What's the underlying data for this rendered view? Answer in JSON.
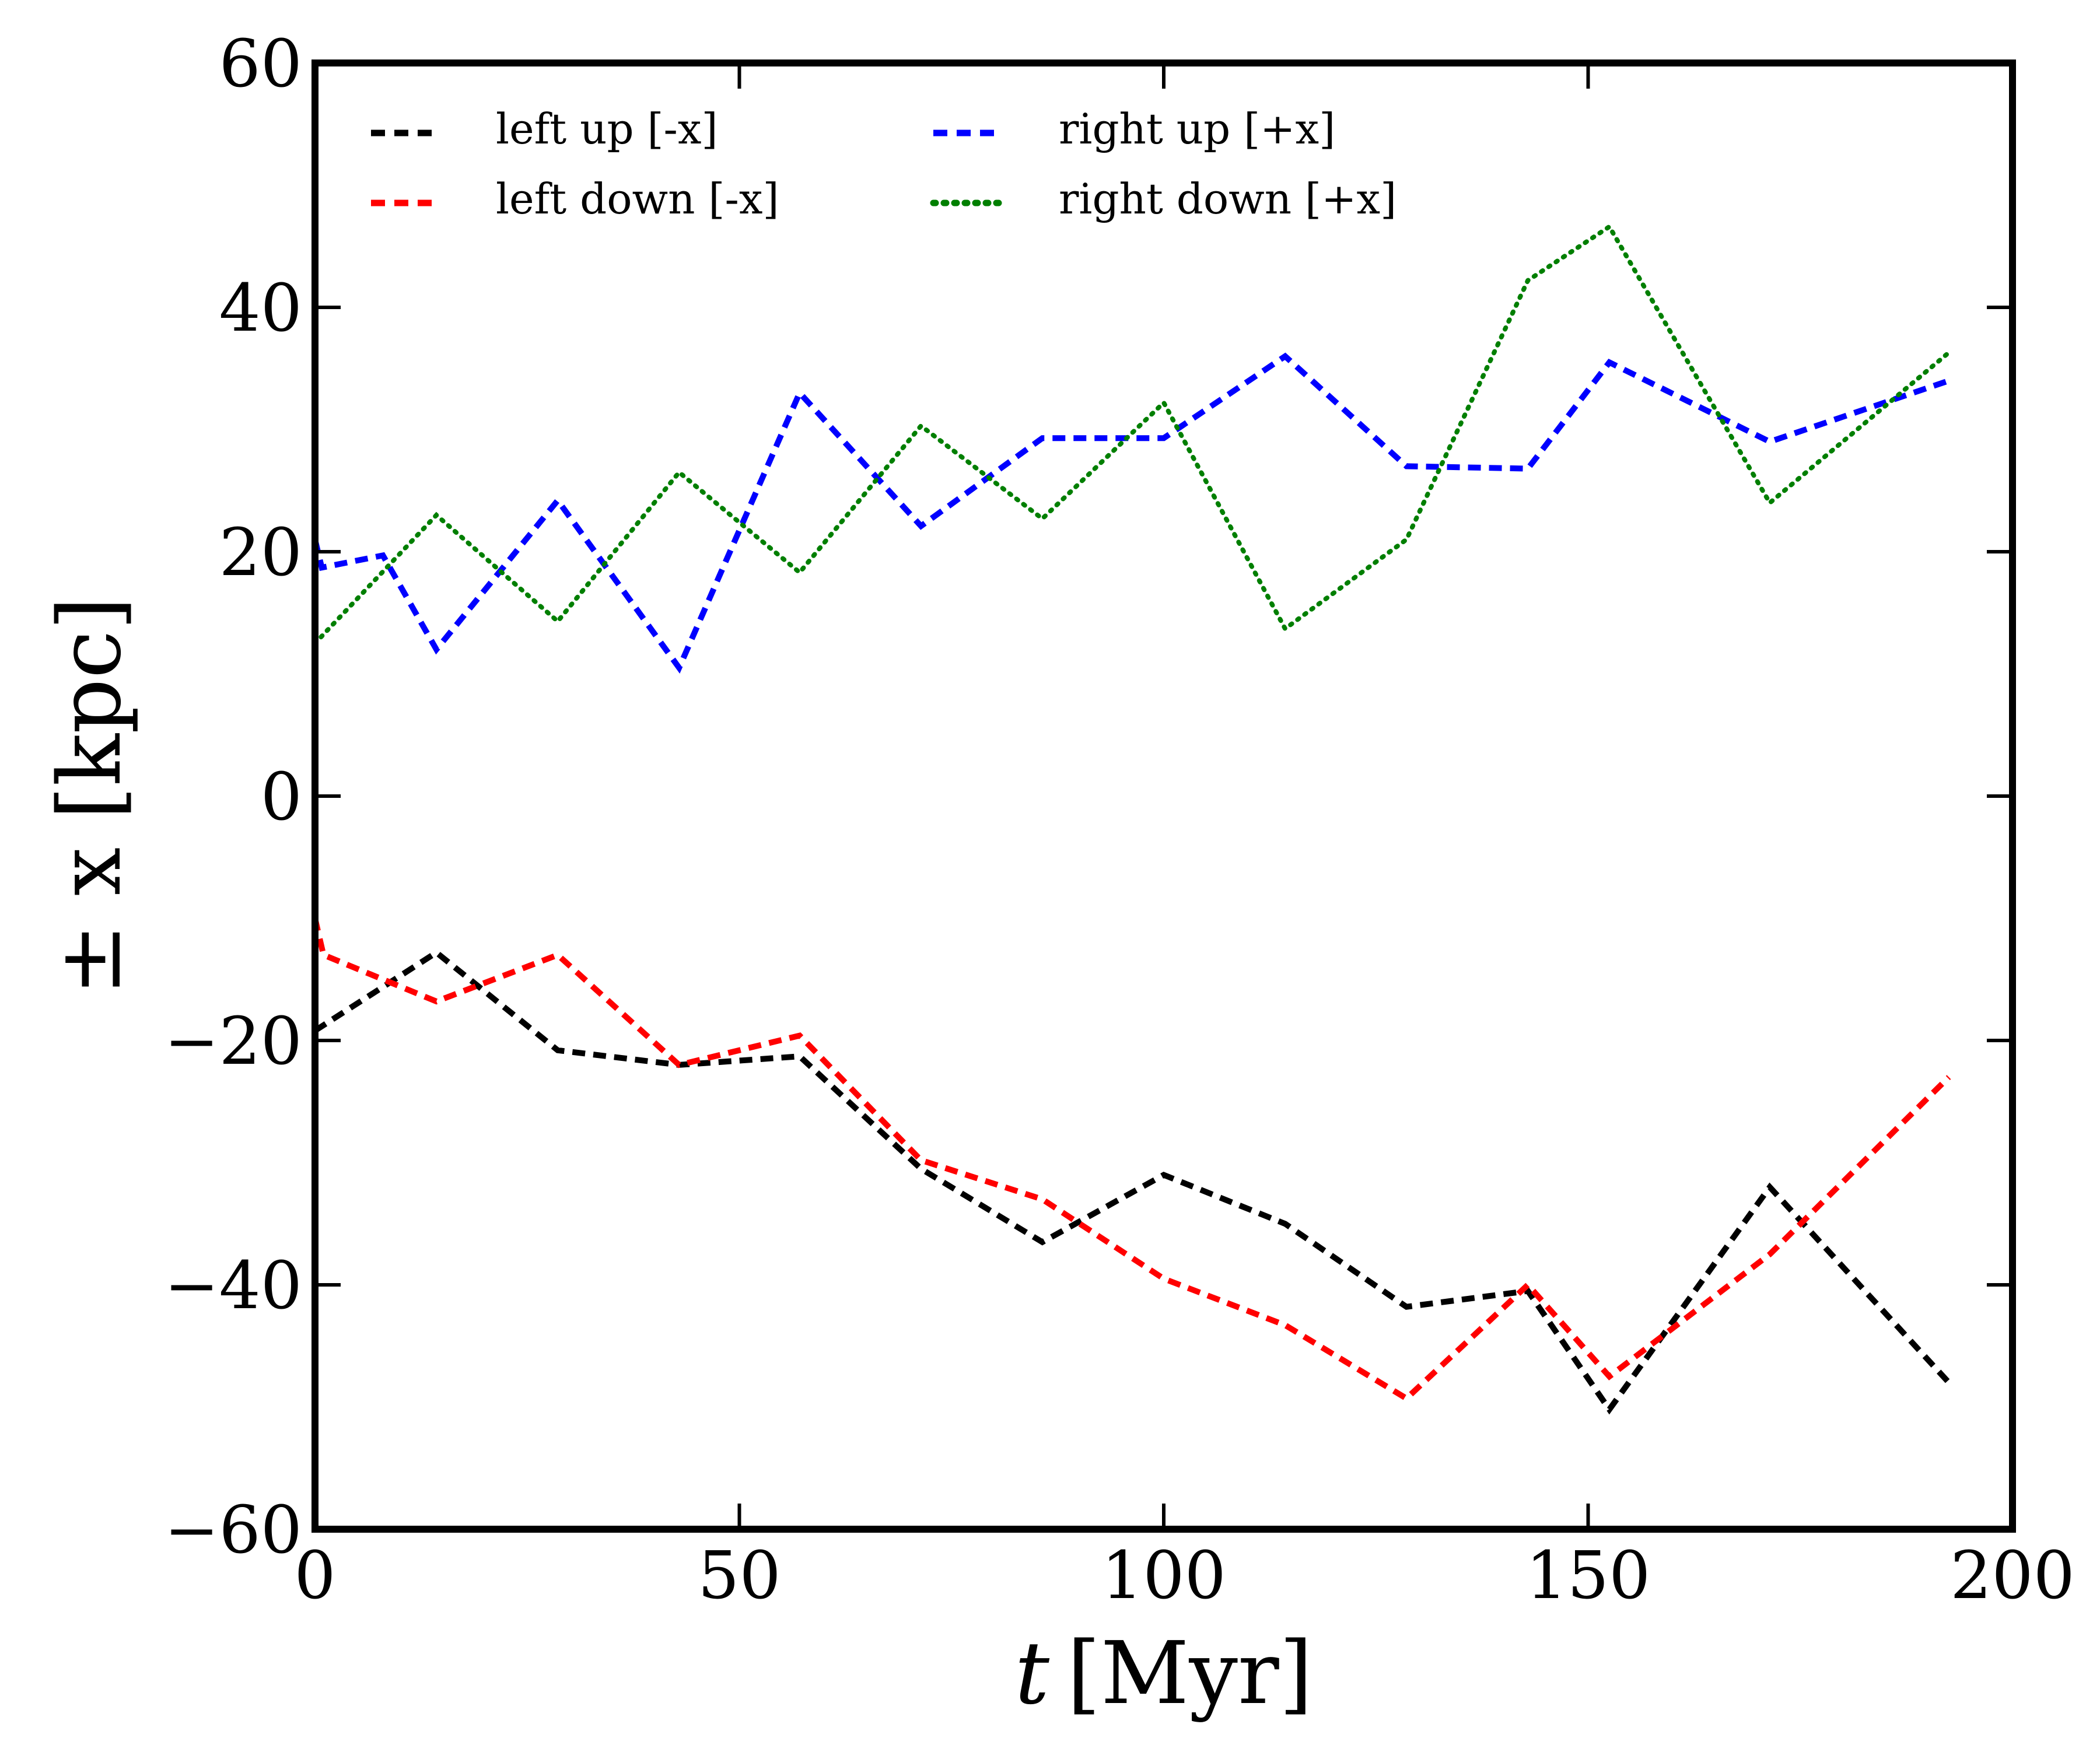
{
  "chart_data": {
    "type": "line",
    "title": "",
    "xlabel": "t [Myr]",
    "xlabel_var": "t",
    "xlabel_unit": "[Myr]",
    "ylabel": "± x [kpc]",
    "xlim": [
      0,
      200
    ],
    "ylim": [
      -60,
      60
    ],
    "xticks": [
      0,
      50,
      100,
      150,
      200
    ],
    "xtick_labels": [
      "0",
      "50",
      "100",
      "150",
      "200"
    ],
    "yticks": [
      -60,
      -40,
      -20,
      0,
      20,
      40,
      60
    ],
    "ytick_labels": [
      "−60",
      "−40",
      "−20",
      "0",
      "20",
      "40",
      "60"
    ],
    "grid": false,
    "legend_position": "top-left",
    "series": [
      {
        "name": "left up [-x]",
        "color": "#000000",
        "style": "dashed",
        "x": [
          0,
          14.3,
          28.6,
          42.9,
          57.1,
          71.4,
          85.7,
          100,
          114.3,
          128.6,
          142.9,
          152.5,
          171.4,
          192.5
        ],
        "y": [
          -19.2,
          -12.8,
          -20.8,
          -22,
          -21.3,
          -30.5,
          -36.5,
          -31,
          -35,
          -41.8,
          -40.5,
          -50.2,
          -32,
          -48
        ]
      },
      {
        "name": "left down [-x]",
        "color": "#ff0000",
        "style": "dashed",
        "x": [
          0,
          1,
          14.3,
          28.6,
          42.9,
          57.1,
          71.4,
          85.7,
          100,
          114.3,
          128.6,
          142.9,
          152.5,
          171.4,
          192.5
        ],
        "y": [
          -10,
          -13,
          -16.8,
          -13,
          -22,
          -19.6,
          -29.8,
          -33,
          -39.5,
          -43.3,
          -49.3,
          -40,
          -47.5,
          -37.5,
          -23
        ]
      },
      {
        "name": "right up [+x]",
        "color": "#0000ff",
        "style": "dashed",
        "x": [
          0,
          0.8,
          8,
          14.3,
          28.6,
          42.9,
          57.1,
          71.4,
          85.7,
          100,
          114.3,
          128.6,
          142.9,
          152.5,
          171.4,
          192.5
        ],
        "y": [
          21,
          18.7,
          19.7,
          12,
          24.2,
          10.5,
          33,
          22.1,
          29.3,
          29.3,
          36,
          27,
          26.8,
          35.5,
          29,
          34
        ]
      },
      {
        "name": "right down [+x]",
        "color": "#007f00",
        "style": "dotted",
        "x": [
          0,
          14.3,
          28.6,
          42.9,
          57.1,
          71.4,
          85.7,
          100,
          114.3,
          128.6,
          142.9,
          152.5,
          171.4,
          192.5
        ],
        "y": [
          12.5,
          23,
          14.3,
          26.5,
          18.3,
          30.3,
          22.7,
          32.2,
          13.7,
          21,
          42.2,
          46.6,
          24,
          36.3
        ]
      }
    ]
  }
}
